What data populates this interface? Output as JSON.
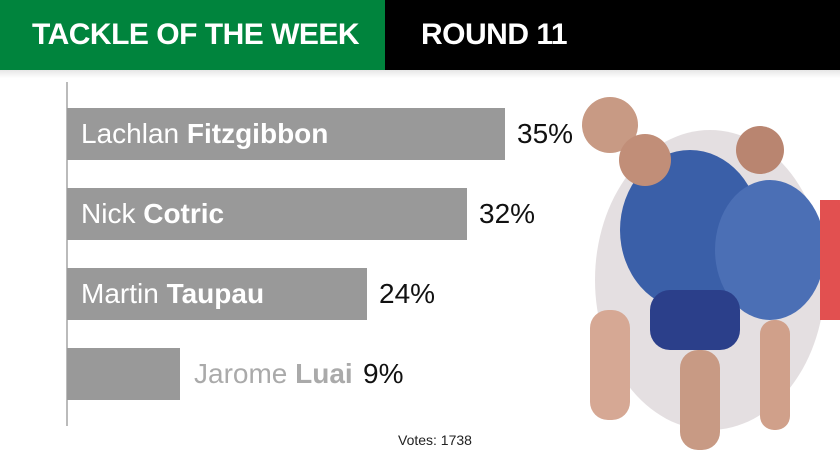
{
  "header": {
    "title": "TACKLE OF THE WEEK",
    "round": "ROUND 11"
  },
  "chart_data": {
    "type": "bar",
    "orientation": "horizontal",
    "categories": [
      "Lachlan Fitzgibbon",
      "Nick Cotric",
      "Martin Taupau",
      "Jarome Luai"
    ],
    "first_names": [
      "Lachlan",
      "Nick",
      "Martin",
      "Jarome"
    ],
    "last_names": [
      "Fitzgibbon",
      "Cotric",
      "Taupau",
      "Luai"
    ],
    "values": [
      35,
      32,
      24,
      9
    ],
    "value_labels": [
      "35%",
      "32%",
      "24%",
      "9%"
    ],
    "unit": "%",
    "bar_color": "#999999",
    "grid": false
  },
  "footer": {
    "votes": "Votes: 1738"
  },
  "colors": {
    "header_green": "#00843d",
    "header_black": "#000000"
  },
  "image": {
    "subject": "rugby league players in tackle"
  }
}
